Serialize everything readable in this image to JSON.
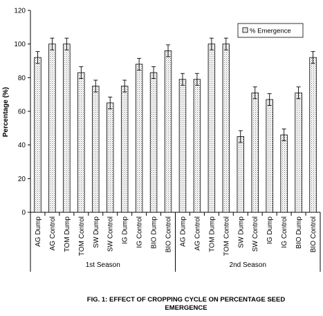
{
  "chart_data": {
    "type": "bar",
    "ylabel": "Percentage (%)",
    "ylim": [
      0,
      120
    ],
    "yticks": [
      0,
      20,
      40,
      60,
      80,
      100,
      120
    ],
    "legend": {
      "label": "% Emergence",
      "placement": "top-right"
    },
    "groups": [
      "1st Season",
      "2nd Season"
    ],
    "categories": [
      "AG Dump",
      "AG Control",
      "TOM Dump",
      "TOM Control",
      "SW Dump",
      "SW Control",
      "IG Dump",
      "IG Control",
      "BIO Dump",
      "BIO Control",
      "AG Dump",
      "AG Control",
      "TOM Dump",
      "TOM Control",
      "SW Dump",
      "SW Control",
      "IG Dump",
      "IG Control",
      "BIO Dump",
      "BIO Control"
    ],
    "series": [
      {
        "name": "% Emergence",
        "values": [
          92,
          100,
          100,
          83,
          75,
          65,
          75,
          88,
          83,
          96,
          79,
          79,
          100,
          100,
          45,
          71,
          67,
          46,
          71,
          92
        ],
        "errors": [
          3.5,
          3.5,
          3.5,
          3.5,
          3.5,
          3.5,
          3.5,
          3.5,
          3.5,
          3.5,
          3.5,
          3.5,
          3.5,
          3.5,
          3.5,
          3.5,
          3.5,
          3.5,
          3.5,
          3.5
        ]
      }
    ],
    "grid": false,
    "caption_lines": [
      "FIG. 1: EFFECT OF CROPPING CYCLE ON PERCENTAGE SEED",
      "EMERGENCE"
    ]
  }
}
